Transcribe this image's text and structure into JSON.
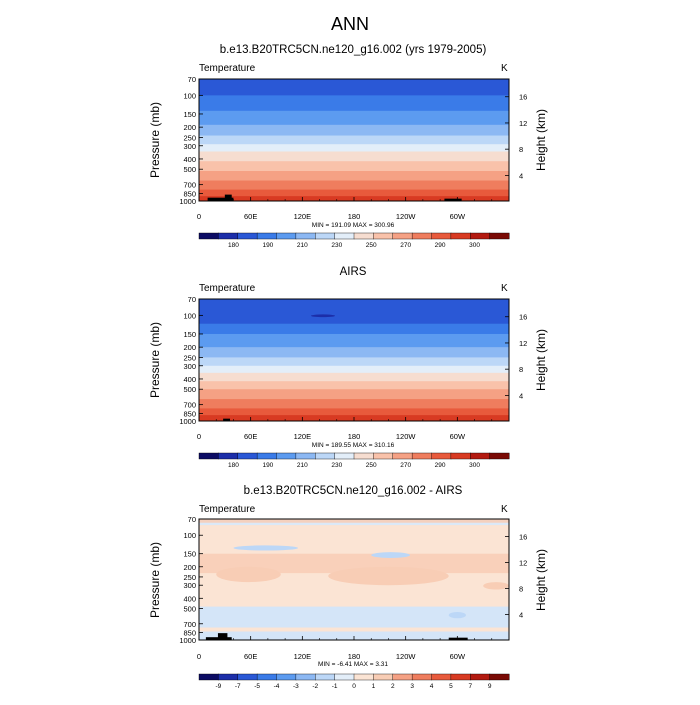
{
  "figure": {
    "main_title": "ANN"
  },
  "chart_data": [
    {
      "type": "heatmap",
      "title": "b.e13.B20TRC5CN.ne120_g16.002 (yrs 1979-2005)",
      "left_label": "Temperature",
      "unit_label": "K",
      "ylabel": "Pressure (mb)",
      "y2label": "Height (km)",
      "pressure_ticks": [
        "70",
        "100",
        "150",
        "200",
        "250",
        "300",
        "400",
        "500",
        "700",
        "850",
        "1000"
      ],
      "height_ticks": [
        "16",
        "12",
        "8",
        "4"
      ],
      "longitude_ticks": [
        "0",
        "60E",
        "120E",
        "180",
        "120W",
        "60W"
      ],
      "stats_text": "MIN = 191.09   MAX = 300.96",
      "min": 191.09,
      "max": 300.96,
      "colorbar_labels": [
        "180",
        "190",
        "210",
        "230",
        "250",
        "270",
        "290",
        "300"
      ],
      "colorbar_colors": [
        "#0c0c64",
        "#1c2ea9",
        "#2a58d6",
        "#3a7be8",
        "#5c9bf0",
        "#8cb8f3",
        "#bcd7f7",
        "#e3eef9",
        "#f6ddd0",
        "#f9c2aa",
        "#f5a184",
        "#ef7d5e",
        "#e85a3c",
        "#d83a22",
        "#b31a10",
        "#7a0a05"
      ],
      "bands": [
        {
          "p_top": 70,
          "color": "#2a58d6"
        },
        {
          "p_top": 100,
          "color": "#3a7be8"
        },
        {
          "p_top": 140,
          "color": "#5c9bf0"
        },
        {
          "p_top": 190,
          "color": "#8cb8f3"
        },
        {
          "p_top": 240,
          "color": "#bcd7f7"
        },
        {
          "p_top": 290,
          "color": "#e3eef9"
        },
        {
          "p_top": 340,
          "color": "#f6ddd0"
        },
        {
          "p_top": 420,
          "color": "#f9c2aa"
        },
        {
          "p_top": 520,
          "color": "#f5a184"
        },
        {
          "p_top": 640,
          "color": "#ef7d5e"
        },
        {
          "p_top": 780,
          "color": "#e85a3c"
        },
        {
          "p_top": 900,
          "color": "#d83a22"
        }
      ],
      "terrain": [
        {
          "lon": [
            10,
            40
          ],
          "p": 930
        },
        {
          "lon": [
            30,
            38
          ],
          "p": 870
        },
        {
          "lon": [
            285,
            305
          ],
          "p": 950
        }
      ],
      "blobs": []
    },
    {
      "type": "heatmap",
      "title": "AIRS",
      "left_label": "Temperature",
      "unit_label": "K",
      "ylabel": "Pressure (mb)",
      "y2label": "Height (km)",
      "pressure_ticks": [
        "70",
        "100",
        "150",
        "200",
        "250",
        "300",
        "400",
        "500",
        "700",
        "850",
        "1000"
      ],
      "height_ticks": [
        "16",
        "12",
        "8",
        "4"
      ],
      "longitude_ticks": [
        "0",
        "60E",
        "120E",
        "180",
        "120W",
        "60W"
      ],
      "stats_text": "MIN = 189.55   MAX = 310.16",
      "min": 189.55,
      "max": 310.16,
      "colorbar_labels": [
        "180",
        "190",
        "210",
        "230",
        "250",
        "270",
        "290",
        "300"
      ],
      "colorbar_colors": [
        "#0c0c64",
        "#1c2ea9",
        "#2a58d6",
        "#3a7be8",
        "#5c9bf0",
        "#8cb8f3",
        "#bcd7f7",
        "#e3eef9",
        "#f6ddd0",
        "#f9c2aa",
        "#f5a184",
        "#ef7d5e",
        "#e85a3c",
        "#d83a22",
        "#b31a10",
        "#7a0a05"
      ],
      "bands": [
        {
          "p_top": 70,
          "color": "#2a58d6"
        },
        {
          "p_top": 120,
          "color": "#3a7be8"
        },
        {
          "p_top": 150,
          "color": "#5c9bf0"
        },
        {
          "p_top": 200,
          "color": "#8cb8f3"
        },
        {
          "p_top": 250,
          "color": "#bcd7f7"
        },
        {
          "p_top": 300,
          "color": "#e3eef9"
        },
        {
          "p_top": 350,
          "color": "#f6ddd0"
        },
        {
          "p_top": 420,
          "color": "#f9c2aa"
        },
        {
          "p_top": 500,
          "color": "#f5a184"
        },
        {
          "p_top": 620,
          "color": "#ef7d5e"
        },
        {
          "p_top": 760,
          "color": "#e85a3c"
        },
        {
          "p_top": 880,
          "color": "#d83a22"
        }
      ],
      "terrain": [
        {
          "lon": [
            28,
            36
          ],
          "p": 950
        }
      ],
      "blobs": [
        {
          "lon": [
            130,
            158
          ],
          "p": [
            98,
            104
          ],
          "color": "#1c2ea9"
        }
      ]
    },
    {
      "type": "heatmap",
      "title": "b.e13.B20TRC5CN.ne120_g16.002 - AIRS",
      "left_label": "Temperature",
      "unit_label": "K",
      "ylabel": "Pressure (mb)",
      "y2label": "Height (km)",
      "pressure_ticks": [
        "70",
        "100",
        "150",
        "200",
        "250",
        "300",
        "400",
        "500",
        "700",
        "850",
        "1000"
      ],
      "height_ticks": [
        "16",
        "12",
        "8",
        "4"
      ],
      "longitude_ticks": [
        "0",
        "60E",
        "120E",
        "180",
        "120W",
        "60W"
      ],
      "stats_text": "MIN =  -6.41   MAX =   3.31",
      "min": -6.41,
      "max": 3.31,
      "colorbar_labels": [
        "-9",
        "-7",
        "-5",
        "-4",
        "-3",
        "-2",
        "-1",
        "0",
        "1",
        "2",
        "3",
        "4",
        "5",
        "7",
        "9"
      ],
      "colorbar_colors": [
        "#0c0c64",
        "#1c2ea9",
        "#2a58d6",
        "#3a7be8",
        "#5c9bf0",
        "#8cb8f3",
        "#bcd7f7",
        "#e3eef9",
        "#fbe4d4",
        "#f8cdb5",
        "#f5a184",
        "#ef7d5e",
        "#e85a3c",
        "#d83a22",
        "#b31a10",
        "#7a0a05"
      ],
      "bands": [
        {
          "p_top": 70,
          "color": "#dbe9f8"
        },
        {
          "p_top": 80,
          "color": "#fbe4d4"
        },
        {
          "p_top": 480,
          "color": "#d4e5f8"
        },
        {
          "p_top": 760,
          "color": "#fbe4d4"
        },
        {
          "p_top": 830,
          "color": "#d4e5f8"
        }
      ],
      "terrain": [
        {
          "lon": [
            8,
            38
          ],
          "p": 940
        },
        {
          "lon": [
            22,
            33
          ],
          "p": 860
        },
        {
          "lon": [
            290,
            312
          ],
          "p": 950
        }
      ],
      "blobs": [
        {
          "lon": [
            0,
            360
          ],
          "p": [
            150,
            230
          ],
          "color": "#f8cdb5",
          "shape": "band"
        },
        {
          "lon": [
            20,
            95
          ],
          "p": [
            200,
            280
          ],
          "color": "#f8cdb5"
        },
        {
          "lon": [
            150,
            290
          ],
          "p": [
            200,
            300
          ],
          "color": "#f8cdb5"
        },
        {
          "lon": [
            40,
            115
          ],
          "p": [
            125,
            140
          ],
          "color": "#bcd7f7"
        },
        {
          "lon": [
            200,
            245
          ],
          "p": [
            145,
            165
          ],
          "color": "#bcd7f7"
        },
        {
          "lon": [
            330,
            360
          ],
          "p": [
            280,
            330
          ],
          "color": "#f8cdb5"
        },
        {
          "lon": [
            290,
            310
          ],
          "p": [
            540,
            620
          ],
          "color": "#bcd7f7"
        },
        {
          "lon": [
            0,
            360
          ],
          "p": [
            70,
            76
          ],
          "color": "#f8cdb5",
          "shape": "band"
        }
      ]
    }
  ]
}
